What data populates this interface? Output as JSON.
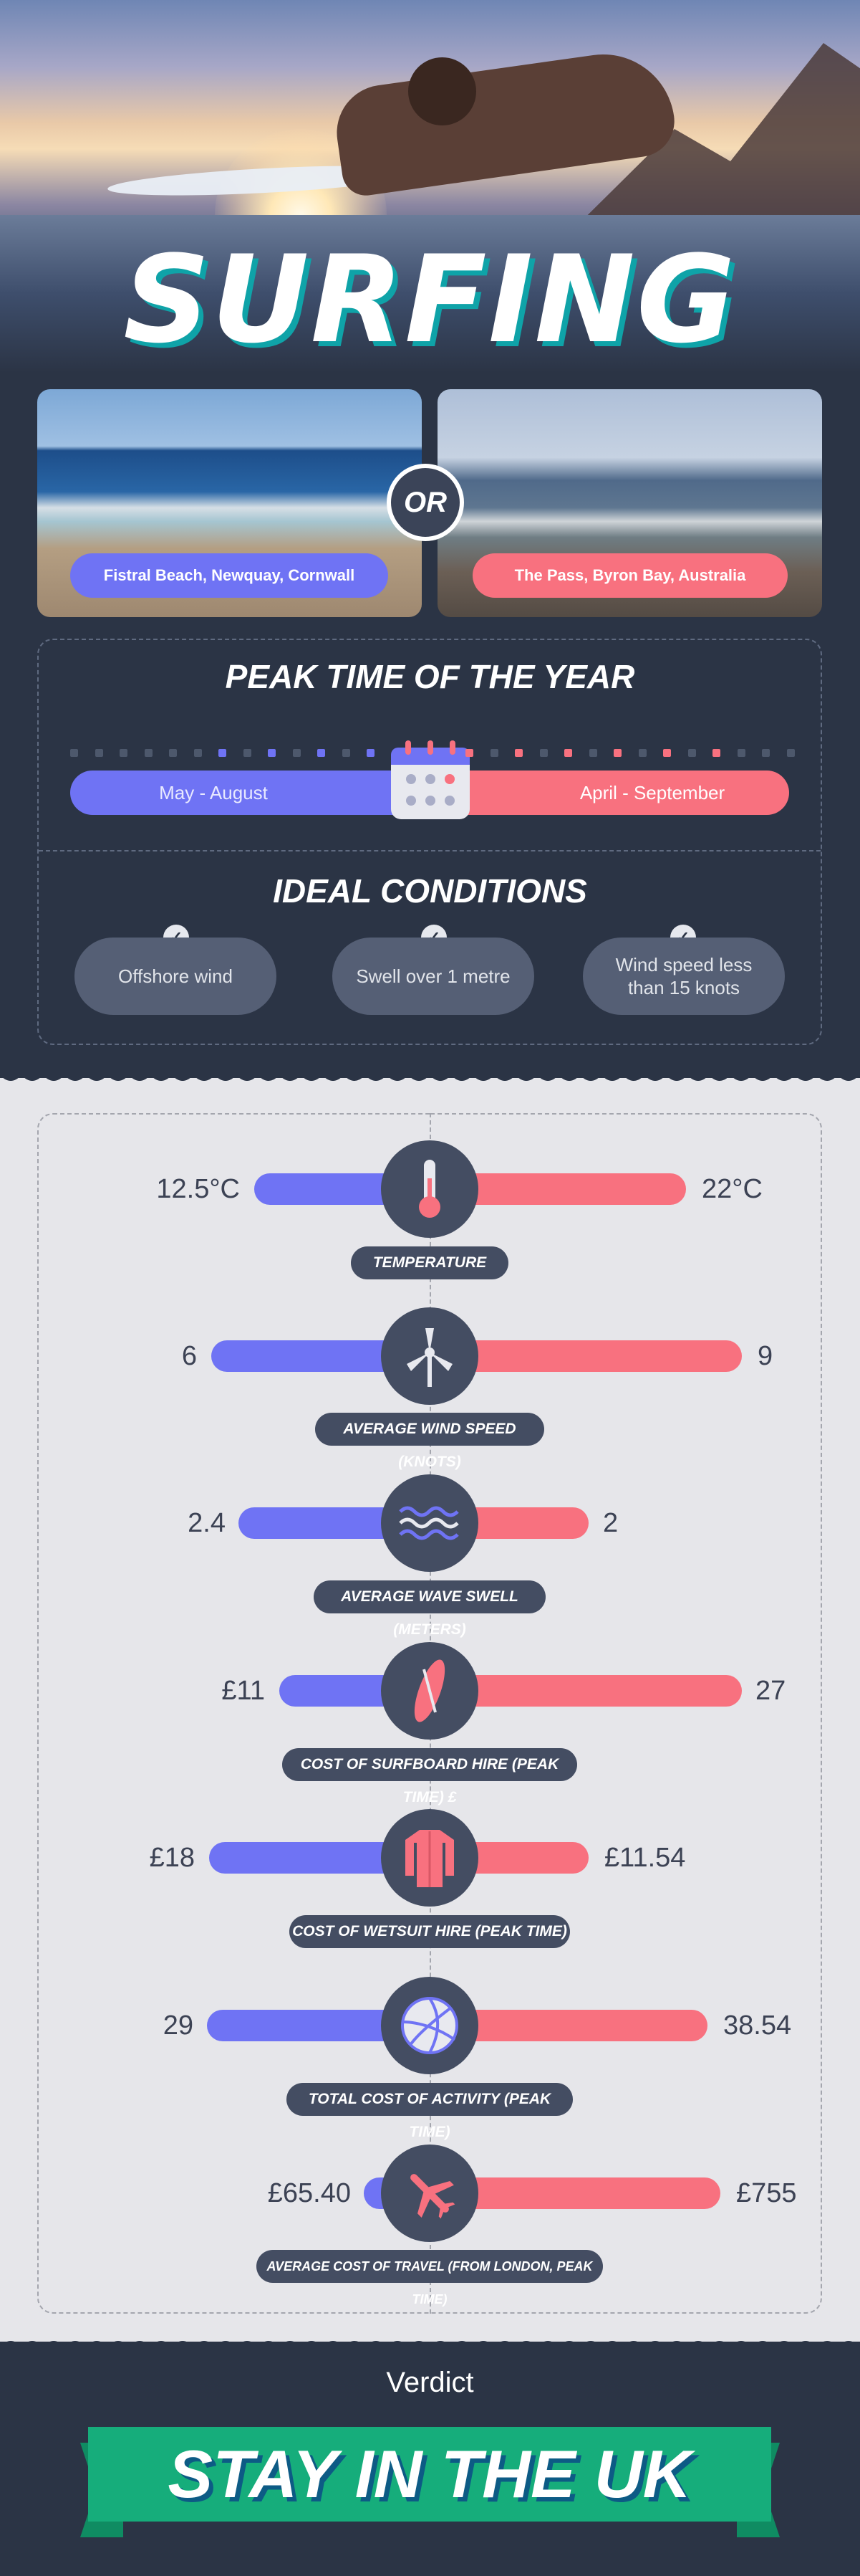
{
  "title": "SURFING",
  "locations": {
    "left": "Fistral Beach, Newquay, Cornwall",
    "right": "The Pass, Byron Bay, Australia",
    "or_label": "OR"
  },
  "peak": {
    "heading": "PEAK TIME OF THE YEAR",
    "left": "May - August",
    "right": "April - September"
  },
  "conditions": {
    "heading": "IDEAL CONDITIONS",
    "items": [
      "Offshore wind",
      "Swell over 1 metre",
      "Wind speed less than 15 knots"
    ]
  },
  "colors": {
    "uk": "#6f73f4",
    "australia": "#f8717f",
    "background": "#2b3445",
    "verdict": "#16ad7b"
  },
  "stats": [
    {
      "label": "TEMPERATURE",
      "left": "12.5°C",
      "right": "22°C",
      "icon": "thermometer-icon"
    },
    {
      "label": "AVERAGE WIND SPEED (KNOTS)",
      "left": "6",
      "right": "9",
      "icon": "wind-turbine-icon"
    },
    {
      "label": "AVERAGE WAVE SWELL (METERS)",
      "left": "2.4",
      "right": "2",
      "icon": "waves-icon"
    },
    {
      "label": "COST OF SURFBOARD HIRE (PEAK TIME) £",
      "left": "£11",
      "right": "27",
      "icon": "surfboard-icon"
    },
    {
      "label": "COST OF WETSUIT HIRE (PEAK TIME)",
      "left": "£18",
      "right": "£11.54",
      "icon": "wetsuit-icon"
    },
    {
      "label": "TOTAL COST OF ACTIVITY (PEAK TIME)",
      "left": "29",
      "right": "38.54",
      "icon": "volleyball-icon"
    },
    {
      "label": "AVERAGE COST OF TRAVEL (FROM LONDON, PEAK TIME)",
      "left": "£65.40",
      "right": "£755",
      "icon": "airplane-icon"
    }
  ],
  "verdict": {
    "label": "Verdict",
    "text": "STAY IN THE UK"
  }
}
